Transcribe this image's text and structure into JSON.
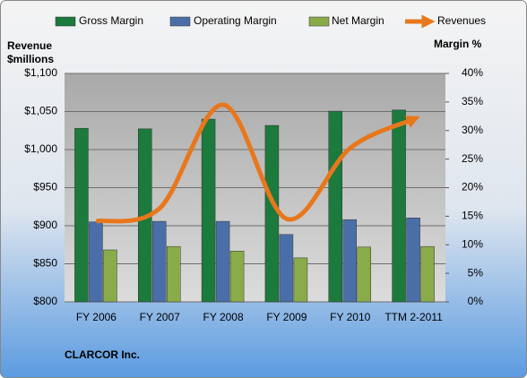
{
  "chart_data": {
    "type": "bar-line",
    "y_label": "Revenue $millions",
    "y2_label": "Margin %",
    "footer": "CLARCOR Inc.",
    "categories": [
      "FY 2006",
      "FY 2007",
      "FY 2008",
      "FY 2009",
      "FY 2010",
      "TTM 2-2011"
    ],
    "series": [
      {
        "name": "Gross Margin",
        "type": "bar",
        "color": "#1b7a3c",
        "axis": "y2",
        "values": [
          30.4,
          30.3,
          32.0,
          30.9,
          33.4,
          33.6
        ]
      },
      {
        "name": "Operating Margin",
        "type": "bar",
        "color": "#4a6fa8",
        "axis": "y2",
        "values": [
          14.0,
          14.1,
          14.1,
          11.8,
          14.4,
          14.7
        ]
      },
      {
        "name": "Net Margin",
        "type": "bar",
        "color": "#8aab4a",
        "axis": "y2",
        "values": [
          9.1,
          9.7,
          8.9,
          7.7,
          9.6,
          9.7
        ]
      },
      {
        "name": "Revenues",
        "type": "line",
        "color": "#e8771c",
        "values": [
          906,
          923,
          1059,
          909,
          1002,
          1040
        ]
      }
    ],
    "ylim": [
      800,
      1100
    ],
    "yticks": [
      {
        "value": 800,
        "label": "$800"
      },
      {
        "value": 850,
        "label": "$850"
      },
      {
        "value": 900,
        "label": "$900"
      },
      {
        "value": 950,
        "label": "$950"
      },
      {
        "value": 1000,
        "label": "$1,000"
      },
      {
        "value": 1050,
        "label": "$1,050"
      },
      {
        "value": 1100,
        "label": "$1,100"
      }
    ],
    "y2lim": [
      0,
      40
    ],
    "y2ticks": [
      {
        "value": 0,
        "label": "0%"
      },
      {
        "value": 5,
        "label": "5%"
      },
      {
        "value": 10,
        "label": "10%"
      },
      {
        "value": 15,
        "label": "15%"
      },
      {
        "value": 20,
        "label": "20%"
      },
      {
        "value": 25,
        "label": "25%"
      },
      {
        "value": 30,
        "label": "30%"
      },
      {
        "value": 35,
        "label": "35%"
      },
      {
        "value": 40,
        "label": "40%"
      }
    ],
    "grid": true
  }
}
